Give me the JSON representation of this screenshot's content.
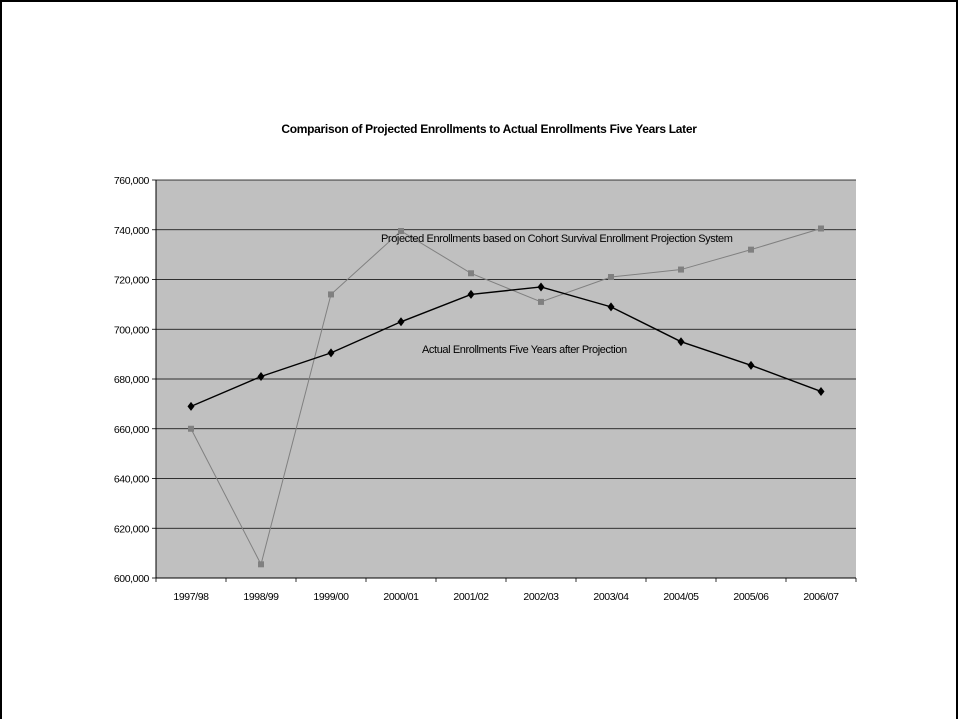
{
  "chart_data": {
    "type": "line",
    "title": "Comparison of Projected Enrollments to Actual Enrollments Five Years Later",
    "categories": [
      "1997/98",
      "1998/99",
      "1999/00",
      "2000/01",
      "2001/02",
      "2002/03",
      "2003/04",
      "2004/05",
      "2005/06",
      "2006/07"
    ],
    "ylim": [
      600000,
      760000
    ],
    "yticks": [
      600000,
      620000,
      640000,
      660000,
      680000,
      700000,
      720000,
      740000,
      760000
    ],
    "ytick_labels": [
      "600,000",
      "620,000",
      "640,000",
      "660,000",
      "680,000",
      "700,000",
      "720,000",
      "740,000",
      "760,000"
    ],
    "grid": true,
    "plot_background": "#c0c0c0",
    "series": [
      {
        "name": "Projected Enrollments based on Cohort Survival Enrollment Projection System",
        "marker": "square",
        "color": "#808080",
        "values": [
          660000,
          605500,
          714000,
          739500,
          722500,
          711000,
          721000,
          724000,
          732000,
          740500
        ]
      },
      {
        "name": "Actual Enrollments Five Years after Projection",
        "marker": "diamond",
        "color": "#000000",
        "values": [
          669000,
          681000,
          690500,
          703000,
          714000,
          717000,
          709000,
          695000,
          685500,
          675000
        ]
      }
    ]
  }
}
